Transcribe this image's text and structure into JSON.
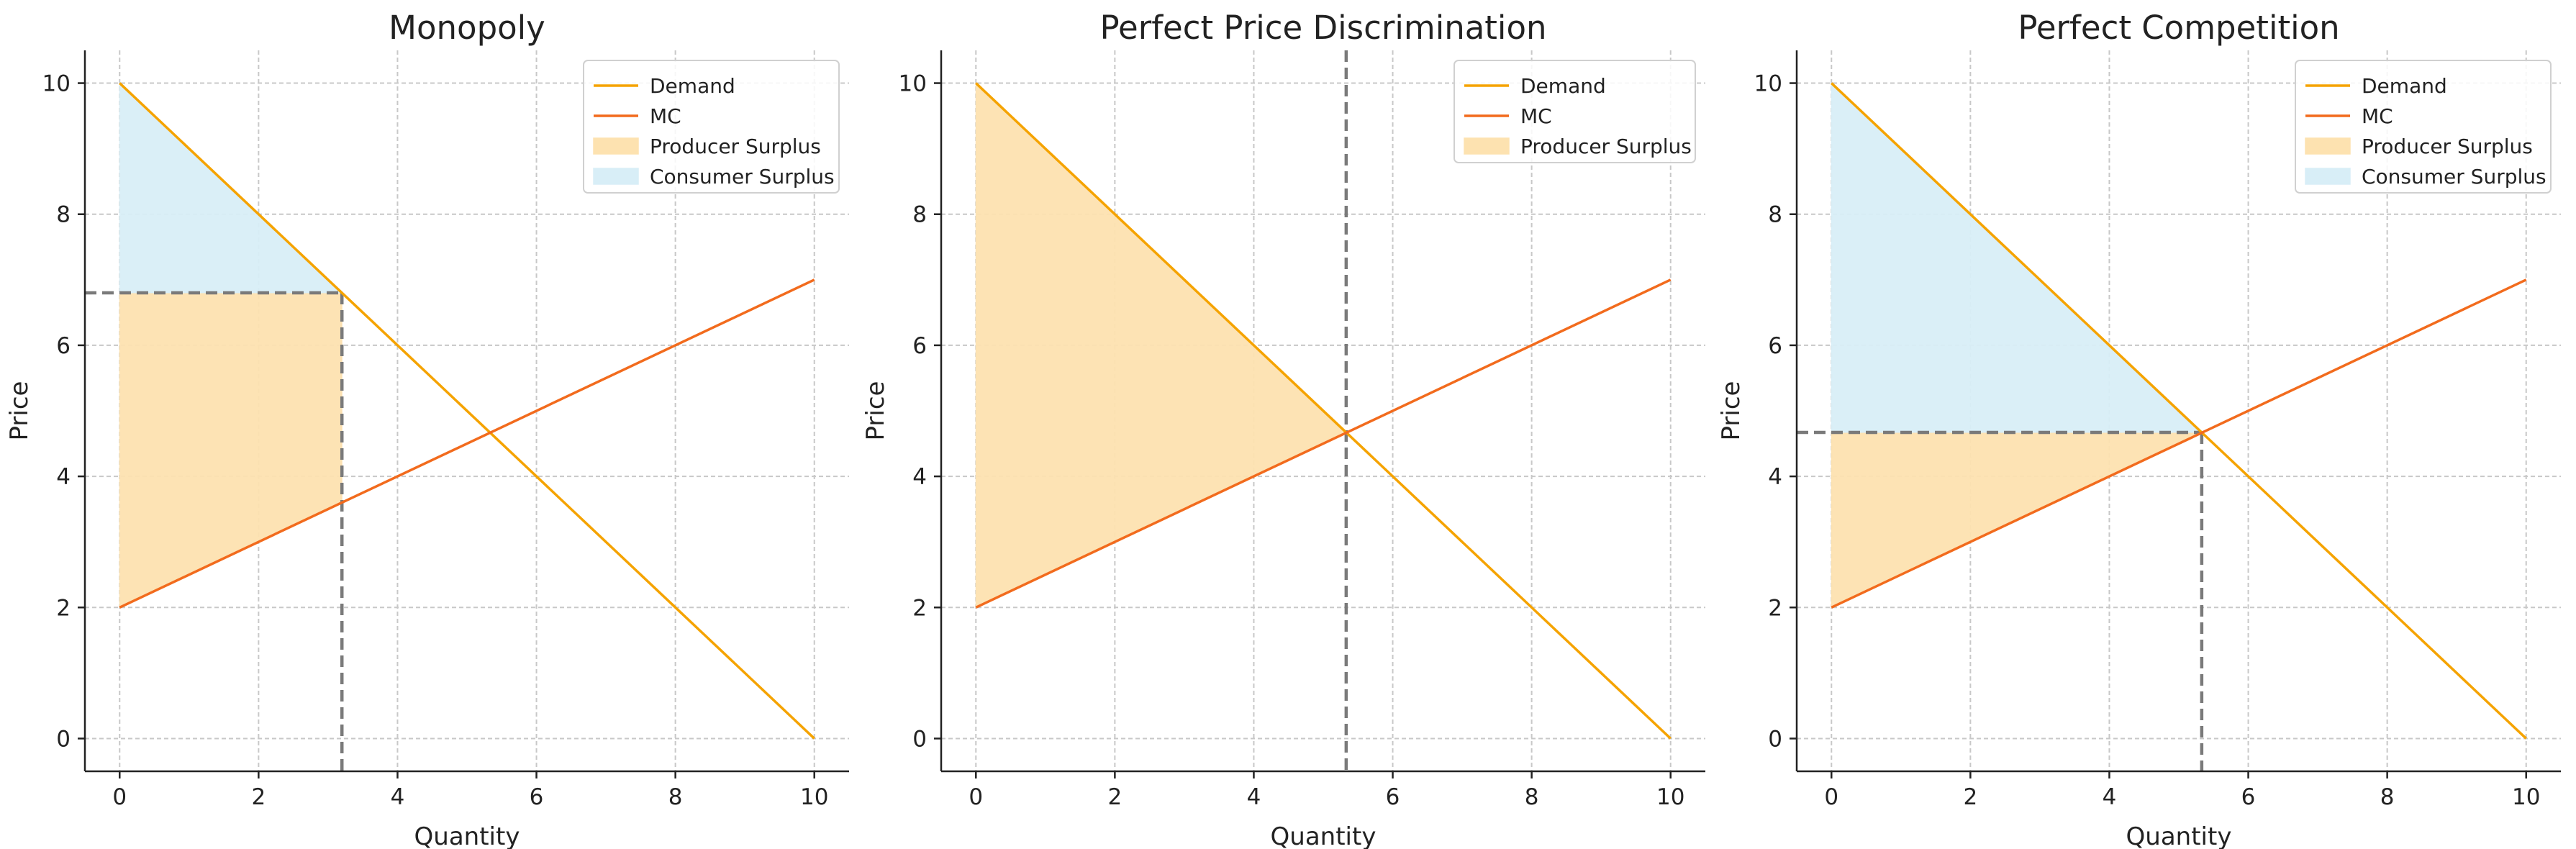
{
  "colors": {
    "demand": "#f5a300",
    "mc": "#f26b1d",
    "producer_surplus": "#fde2b0",
    "consumer_surplus": "#d8eef7",
    "guide": "#7a7a7a"
  },
  "chart_data": [
    {
      "type": "line",
      "title": "Monopoly",
      "xlabel": "Quantity",
      "ylabel": "Price",
      "xlim": [
        -0.5,
        10.5
      ],
      "ylim": [
        -0.5,
        10.5
      ],
      "xticks": [
        0,
        2,
        4,
        6,
        8,
        10
      ],
      "yticks": [
        0,
        2,
        4,
        6,
        8,
        10
      ],
      "grid": true,
      "legend_position": "top-right",
      "series": [
        {
          "name": "Demand",
          "kind": "line",
          "x": [
            0,
            10
          ],
          "y": [
            10,
            0
          ],
          "color": "#f5a300"
        },
        {
          "name": "MC",
          "kind": "line",
          "x": [
            0,
            10
          ],
          "y": [
            2,
            7
          ],
          "color": "#f26b1d"
        },
        {
          "name": "Producer Surplus",
          "kind": "area",
          "x": [
            0,
            3.2,
            3.2,
            0
          ],
          "y": [
            6.8,
            6.8,
            3.6,
            2
          ],
          "color": "#fde2b0"
        },
        {
          "name": "Consumer Surplus",
          "kind": "area",
          "x": [
            0,
            3.2,
            0
          ],
          "y": [
            10,
            6.8,
            6.8
          ],
          "color": "#d8eef7"
        }
      ],
      "guides": {
        "vertical_x": 3.2,
        "horizontal_y": 6.8,
        "horizontal_to_x": 3.2
      }
    },
    {
      "type": "line",
      "title": "Perfect Price Discrimination",
      "xlabel": "Quantity",
      "ylabel": "Price",
      "xlim": [
        -0.5,
        10.5
      ],
      "ylim": [
        -0.5,
        10.5
      ],
      "xticks": [
        0,
        2,
        4,
        6,
        8,
        10
      ],
      "yticks": [
        0,
        2,
        4,
        6,
        8,
        10
      ],
      "grid": true,
      "legend_position": "top-right",
      "series": [
        {
          "name": "Demand",
          "kind": "line",
          "x": [
            0,
            10
          ],
          "y": [
            10,
            0
          ],
          "color": "#f5a300"
        },
        {
          "name": "MC",
          "kind": "line",
          "x": [
            0,
            10
          ],
          "y": [
            2,
            7
          ],
          "color": "#f26b1d"
        },
        {
          "name": "Producer Surplus",
          "kind": "area",
          "x": [
            0,
            5.33,
            0
          ],
          "y": [
            10,
            4.67,
            2
          ],
          "color": "#fde2b0"
        }
      ],
      "guides": {
        "vertical_x": 5.33,
        "vertical_full": true
      }
    },
    {
      "type": "line",
      "title": "Perfect Competition",
      "xlabel": "Quantity",
      "ylabel": "Price",
      "xlim": [
        -0.5,
        10.5
      ],
      "ylim": [
        -0.5,
        10.5
      ],
      "xticks": [
        0,
        2,
        4,
        6,
        8,
        10
      ],
      "yticks": [
        0,
        2,
        4,
        6,
        8,
        10
      ],
      "grid": true,
      "legend_position": "top-right",
      "series": [
        {
          "name": "Demand",
          "kind": "line",
          "x": [
            0,
            10
          ],
          "y": [
            10,
            0
          ],
          "color": "#f5a300"
        },
        {
          "name": "MC",
          "kind": "line",
          "x": [
            0,
            10
          ],
          "y": [
            2,
            7
          ],
          "color": "#f26b1d"
        },
        {
          "name": "Producer Surplus",
          "kind": "area",
          "x": [
            0,
            5.33,
            0
          ],
          "y": [
            4.67,
            4.67,
            2
          ],
          "color": "#fde2b0"
        },
        {
          "name": "Consumer Surplus",
          "kind": "area",
          "x": [
            0,
            5.33,
            0
          ],
          "y": [
            10,
            4.67,
            4.67
          ],
          "color": "#d8eef7"
        }
      ],
      "guides": {
        "vertical_x": 5.33,
        "horizontal_y": 4.67,
        "horizontal_to_x": 5.33
      }
    }
  ]
}
